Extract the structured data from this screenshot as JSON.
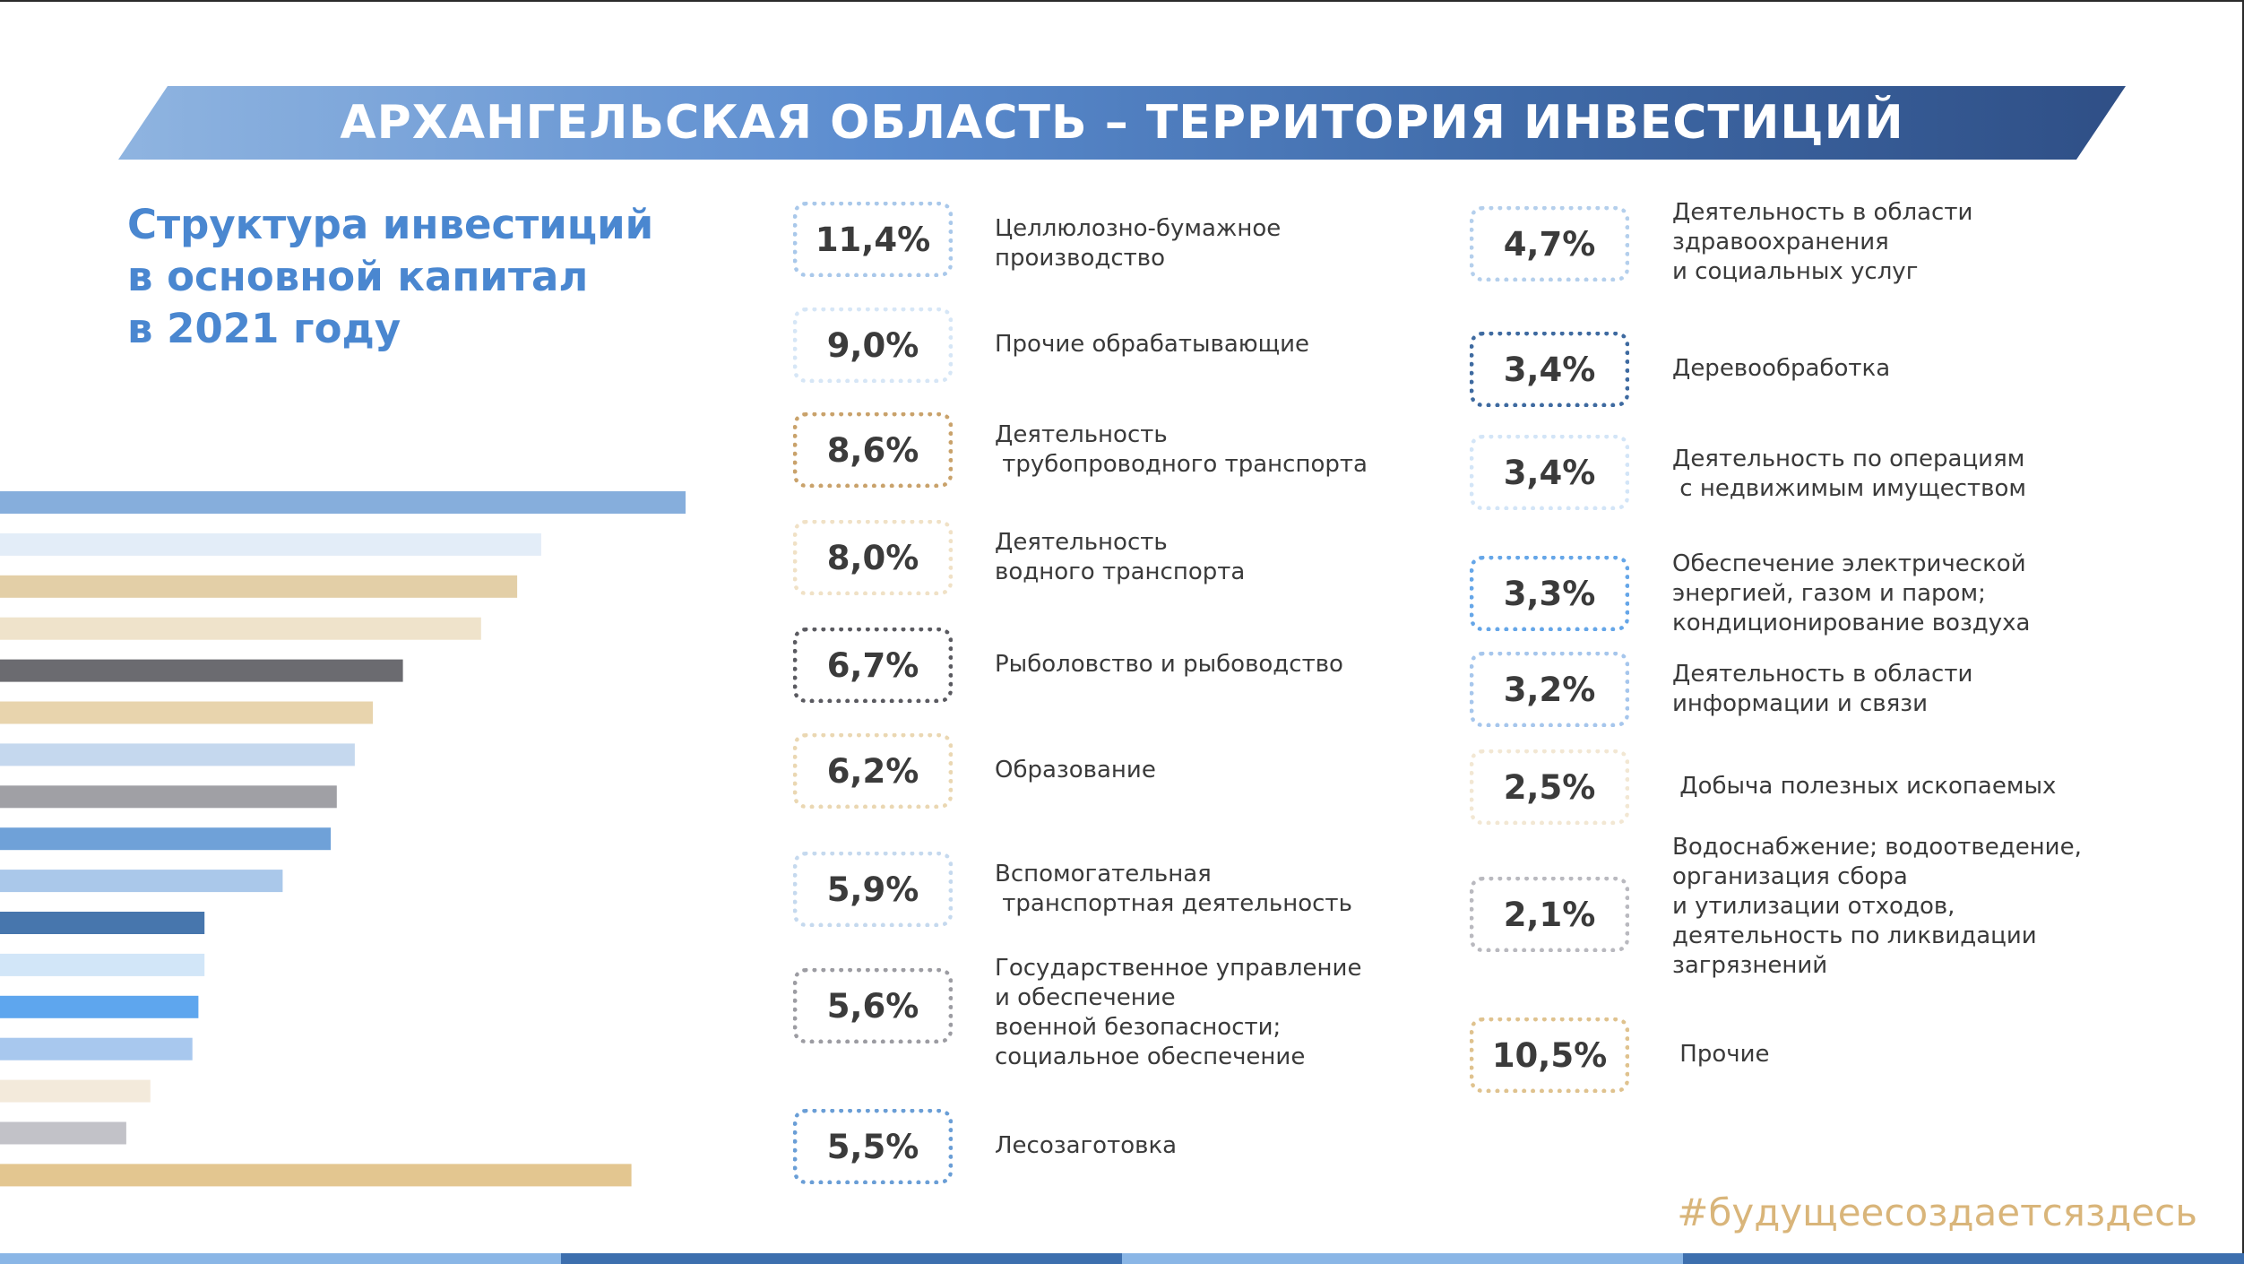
{
  "header": {
    "title": "АРХАНГЕЛЬСКАЯ ОБЛАСТЬ – ТЕРРИТОРИЯ ИНВЕСТИЦИЙ"
  },
  "subtitle_lines": [
    "Структура инвестиций",
    "в основной капитал",
    "в 2021 году"
  ],
  "chart_data": {
    "type": "bar",
    "orientation": "horizontal",
    "title": "Структура инвестиций в основной капитал в 2021 году",
    "unit": "%",
    "categories": [
      "Целлюлозно-бумажное производство",
      "Прочие обрабатывающие",
      "Деятельность трубопроводного транспорта",
      "Деятельность водного транспорта",
      "Рыболовство и рыбоводство",
      "Образование",
      "Вспомогательная транспортная деятельность",
      "Государственное управление и обеспечение военной безопасности; социальное обеспечение",
      "Лесозаготовка",
      "Деятельность в области здравоохранения и социальных услуг",
      "Деревообработка",
      "Деятельность по операциям с недвижимым имуществом",
      "Обеспечение электрической энергией, газом и паром; кондиционирование воздуха",
      "Деятельность в области информации и связи",
      "Добыча полезных ископаемых",
      "Водоснабжение; водоотведение, организация сбора и утилизации отходов, деятельность по ликвидации загрязнений",
      "Прочие"
    ],
    "values": [
      11.4,
      9.0,
      8.6,
      8.0,
      6.7,
      6.2,
      5.9,
      5.6,
      5.5,
      4.7,
      3.4,
      3.4,
      3.3,
      3.2,
      2.5,
      2.1,
      10.5
    ],
    "value_labels": [
      "11,4%",
      "9,0%",
      "8,6%",
      "8,0%",
      "6,7%",
      "6,2%",
      "5,9%",
      "5,6%",
      "5,5%",
      "4,7%",
      "3,4%",
      "3,4%",
      "3,3%",
      "3,2%",
      "2,5%",
      "2,1%",
      "10,5%"
    ],
    "colors": [
      "#86aedc",
      "#e3edf8",
      "#e3cfa7",
      "#efe3cb",
      "#6b6b70",
      "#e8d4ad",
      "#c5d8ee",
      "#a0a0a5",
      "#6fa1d8",
      "#aac8ea",
      "#4776ad",
      "#d2e6f8",
      "#5ea6ee",
      "#a8c8ee",
      "#f3eadb",
      "#c2c2c8",
      "#e3c690"
    ],
    "xlim": [
      0,
      11.4
    ],
    "grid": false,
    "legend": "none"
  },
  "legend_items": [
    {
      "pct": "11,4%",
      "color": "#a9c8ea",
      "lines": [
        "Целлюлозно-бумажное",
        "производство"
      ]
    },
    {
      "pct": "9,0%",
      "color": "#d6e6f6",
      "lines": [
        "Прочие обрабатывающие"
      ]
    },
    {
      "pct": "8,6%",
      "color": "#c9a26b",
      "lines": [
        "Деятельность",
        " трубопроводного транспорта"
      ]
    },
    {
      "pct": "8,0%",
      "color": "#f0e1c6",
      "lines": [
        "Деятельность",
        "водного транспорта"
      ]
    },
    {
      "pct": "6,7%",
      "color": "#5a5a60",
      "lines": [
        "Рыболовство и рыбоводство"
      ]
    },
    {
      "pct": "6,2%",
      "color": "#ead7b2",
      "lines": [
        "Образование"
      ]
    },
    {
      "pct": "5,9%",
      "color": "#c5d9ee",
      "lines": [
        "Вспомогательная",
        " транспортная деятельность"
      ]
    },
    {
      "pct": "5,6%",
      "color": "#9c9ca2",
      "lines": [
        "Государственное управление",
        "и обеспечение",
        "военной безопасности;",
        "социальное обеспечение"
      ]
    },
    {
      "pct": "5,5%",
      "color": "#6a9ed6",
      "lines": [
        "Лесозаготовка"
      ]
    },
    {
      "pct": "4,7%",
      "color": "#b4cfec",
      "lines": [
        "Деятельность в области",
        "здравоохранения",
        "и социальных услуг"
      ]
    },
    {
      "pct": "3,4%",
      "color": "#3e6aa0",
      "lines": [
        "Деревообработка"
      ]
    },
    {
      "pct": "3,4%",
      "color": "#d3e5f7",
      "lines": [
        "Деятельность по операциям",
        " с недвижимым имуществом"
      ]
    },
    {
      "pct": "3,3%",
      "color": "#65a6e8",
      "lines": [
        "Обеспечение электрической",
        "энергией, газом и паром;",
        "кондиционирование воздуха"
      ]
    },
    {
      "pct": "3,2%",
      "color": "#a6c6ec",
      "lines": [
        "Деятельность в области",
        "информации и связи"
      ]
    },
    {
      "pct": "2,5%",
      "color": "#f2e7d3",
      "lines": [
        " Добыча полезных ископаемых"
      ]
    },
    {
      "pct": "2,1%",
      "color": "#b9b9bf",
      "lines": [
        "Водоснабжение; водоотведение,",
        "организация сбора",
        "и утилизации отходов,",
        "деятельность по ликвидации",
        "загрязнений"
      ]
    },
    {
      "pct": "10,5%",
      "color": "#dfc28e",
      "lines": [
        " Прочие"
      ]
    }
  ],
  "hashtag": "#будущеесоздаетсяздесь",
  "footer_colors": [
    "#8ab6e6",
    "#3d6fae",
    "#8ab6e6",
    "#3d6fae"
  ]
}
